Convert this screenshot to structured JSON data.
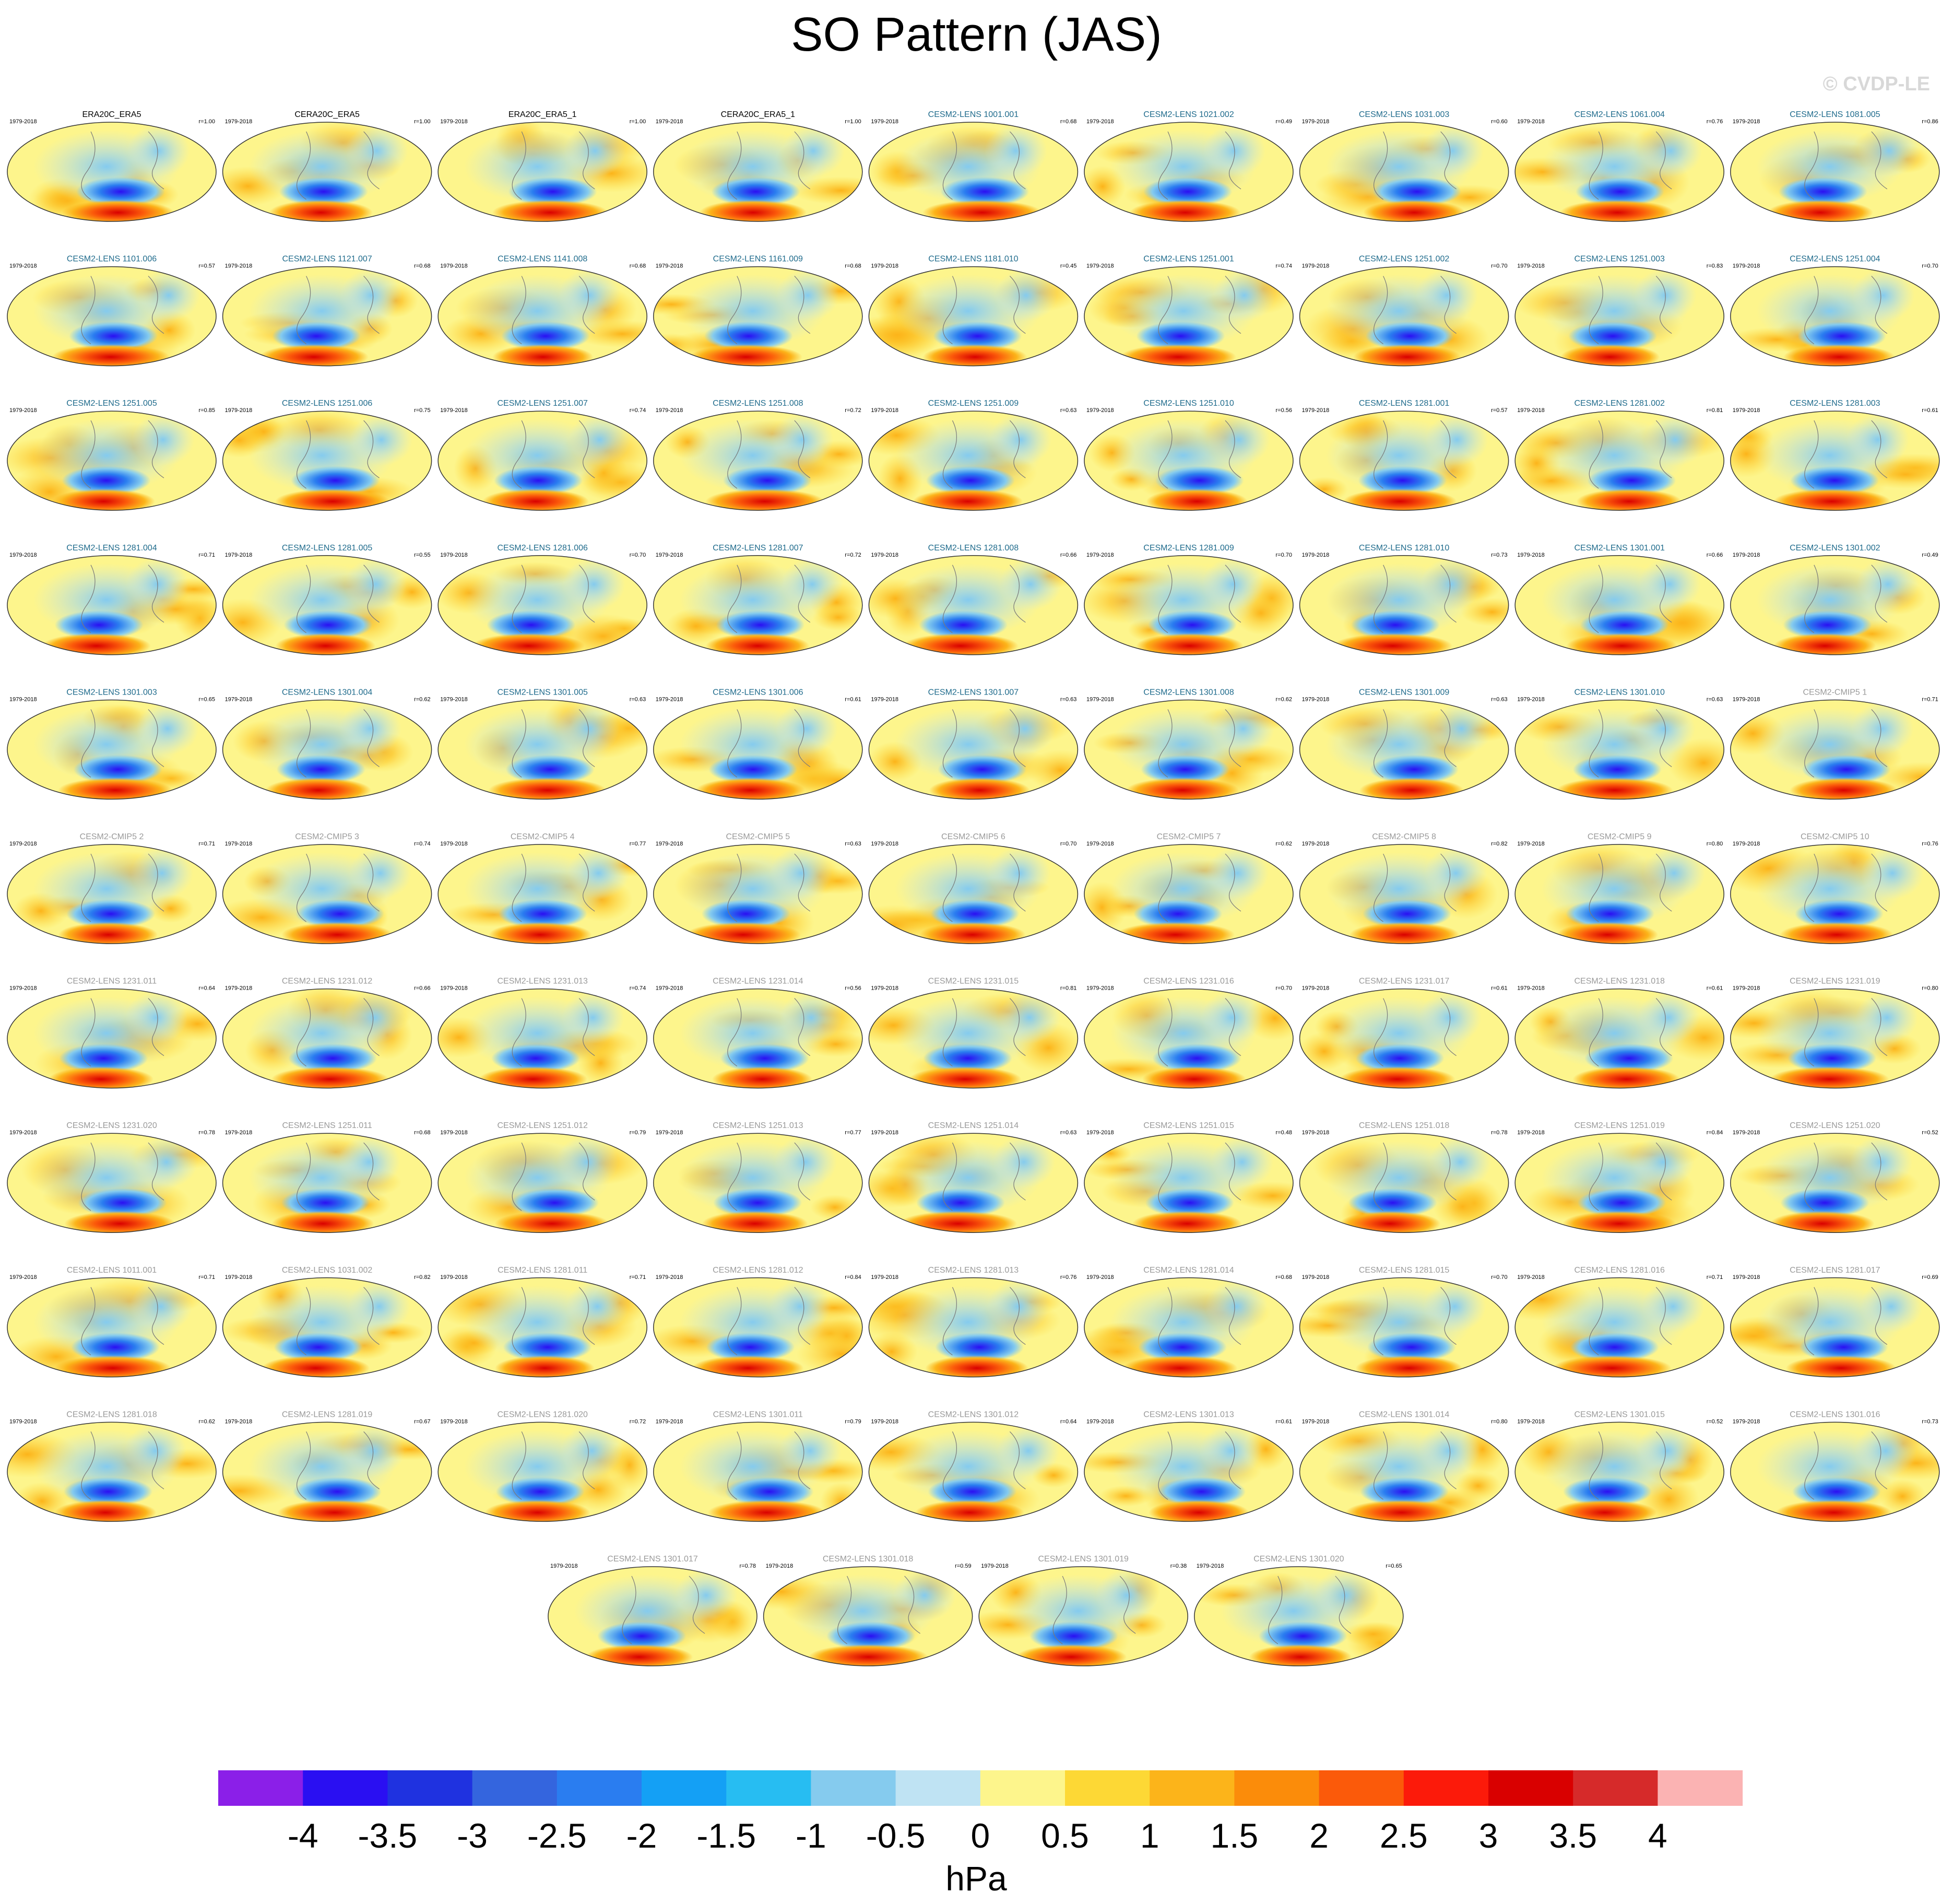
{
  "title": "SO Pattern (JAS)",
  "copyright": "© CVDP-LE",
  "colors": {
    "ocean_land_neutral": "#fdf58c",
    "title_model_label": "#1f6b8c",
    "title_cmip_label": "#9a9a9a",
    "title_obs_label": "#000000"
  },
  "chart_data": {
    "type": "heatmap",
    "panel_period": "1979-2018",
    "panels": [
      {
        "name": "ERA20C_ERA5",
        "r": "r=1.00",
        "period": "1979-2018",
        "kind": "obs"
      },
      {
        "name": "CERA20C_ERA5",
        "r": "r=1.00",
        "period": "1979-2018",
        "kind": "obs"
      },
      {
        "name": "ERA20C_ERA5_1",
        "r": "r=1.00",
        "period": "1979-2018",
        "kind": "obs"
      },
      {
        "name": "CERA20C_ERA5_1",
        "r": "r=1.00",
        "period": "1979-2018",
        "kind": "obs"
      },
      {
        "name": "CESM2-LENS 1001.001",
        "r": "r=0.68",
        "period": "1979-2018",
        "kind": "lens"
      },
      {
        "name": "CESM2-LENS 1021.002",
        "r": "r=0.49",
        "period": "1979-2018",
        "kind": "lens"
      },
      {
        "name": "CESM2-LENS 1031.003",
        "r": "r=0.60",
        "period": "1979-2018",
        "kind": "lens"
      },
      {
        "name": "CESM2-LENS 1061.004",
        "r": "r=0.76",
        "period": "1979-2018",
        "kind": "lens"
      },
      {
        "name": "CESM2-LENS 1081.005",
        "r": "r=0.86",
        "period": "1979-2018",
        "kind": "lens"
      },
      {
        "name": "CESM2-LENS 1101.006",
        "r": "r=0.57",
        "period": "1979-2018",
        "kind": "lens"
      },
      {
        "name": "CESM2-LENS 1121.007",
        "r": "r=0.68",
        "period": "1979-2018",
        "kind": "lens"
      },
      {
        "name": "CESM2-LENS 1141.008",
        "r": "r=0.68",
        "period": "1979-2018",
        "kind": "lens"
      },
      {
        "name": "CESM2-LENS 1161.009",
        "r": "r=0.68",
        "period": "1979-2018",
        "kind": "lens"
      },
      {
        "name": "CESM2-LENS 1181.010",
        "r": "r=0.45",
        "period": "1979-2018",
        "kind": "lens"
      },
      {
        "name": "CESM2-LENS 1251.001",
        "r": "r=0.74",
        "period": "1979-2018",
        "kind": "lens"
      },
      {
        "name": "CESM2-LENS 1251.002",
        "r": "r=0.70",
        "period": "1979-2018",
        "kind": "lens"
      },
      {
        "name": "CESM2-LENS 1251.003",
        "r": "r=0.83",
        "period": "1979-2018",
        "kind": "lens"
      },
      {
        "name": "CESM2-LENS 1251.004",
        "r": "r=0.70",
        "period": "1979-2018",
        "kind": "lens"
      },
      {
        "name": "CESM2-LENS 1251.005",
        "r": "r=0.85",
        "period": "1979-2018",
        "kind": "lens"
      },
      {
        "name": "CESM2-LENS 1251.006",
        "r": "r=0.75",
        "period": "1979-2018",
        "kind": "lens"
      },
      {
        "name": "CESM2-LENS 1251.007",
        "r": "r=0.74",
        "period": "1979-2018",
        "kind": "lens"
      },
      {
        "name": "CESM2-LENS 1251.008",
        "r": "r=0.72",
        "period": "1979-2018",
        "kind": "lens"
      },
      {
        "name": "CESM2-LENS 1251.009",
        "r": "r=0.63",
        "period": "1979-2018",
        "kind": "lens"
      },
      {
        "name": "CESM2-LENS 1251.010",
        "r": "r=0.56",
        "period": "1979-2018",
        "kind": "lens"
      },
      {
        "name": "CESM2-LENS 1281.001",
        "r": "r=0.57",
        "period": "1979-2018",
        "kind": "lens"
      },
      {
        "name": "CESM2-LENS 1281.002",
        "r": "r=0.81",
        "period": "1979-2018",
        "kind": "lens"
      },
      {
        "name": "CESM2-LENS 1281.003",
        "r": "r=0.61",
        "period": "1979-2018",
        "kind": "lens"
      },
      {
        "name": "CESM2-LENS 1281.004",
        "r": "r=0.71",
        "period": "1979-2018",
        "kind": "lens"
      },
      {
        "name": "CESM2-LENS 1281.005",
        "r": "r=0.55",
        "period": "1979-2018",
        "kind": "lens"
      },
      {
        "name": "CESM2-LENS 1281.006",
        "r": "r=0.70",
        "period": "1979-2018",
        "kind": "lens"
      },
      {
        "name": "CESM2-LENS 1281.007",
        "r": "r=0.72",
        "period": "1979-2018",
        "kind": "lens"
      },
      {
        "name": "CESM2-LENS 1281.008",
        "r": "r=0.66",
        "period": "1979-2018",
        "kind": "lens"
      },
      {
        "name": "CESM2-LENS 1281.009",
        "r": "r=0.70",
        "period": "1979-2018",
        "kind": "lens"
      },
      {
        "name": "CESM2-LENS 1281.010",
        "r": "r=0.73",
        "period": "1979-2018",
        "kind": "lens"
      },
      {
        "name": "CESM2-LENS 1301.001",
        "r": "r=0.66",
        "period": "1979-2018",
        "kind": "lens"
      },
      {
        "name": "CESM2-LENS 1301.002",
        "r": "r=0.49",
        "period": "1979-2018",
        "kind": "lens"
      },
      {
        "name": "CESM2-LENS 1301.003",
        "r": "r=0.65",
        "period": "1979-2018",
        "kind": "lens"
      },
      {
        "name": "CESM2-LENS 1301.004",
        "r": "r=0.62",
        "period": "1979-2018",
        "kind": "lens"
      },
      {
        "name": "CESM2-LENS 1301.005",
        "r": "r=0.63",
        "period": "1979-2018",
        "kind": "lens"
      },
      {
        "name": "CESM2-LENS 1301.006",
        "r": "r=0.61",
        "period": "1979-2018",
        "kind": "lens"
      },
      {
        "name": "CESM2-LENS 1301.007",
        "r": "r=0.63",
        "period": "1979-2018",
        "kind": "lens"
      },
      {
        "name": "CESM2-LENS 1301.008",
        "r": "r=0.62",
        "period": "1979-2018",
        "kind": "lens"
      },
      {
        "name": "CESM2-LENS 1301.009",
        "r": "r=0.63",
        "period": "1979-2018",
        "kind": "lens"
      },
      {
        "name": "CESM2-LENS 1301.010",
        "r": "r=0.63",
        "period": "1979-2018",
        "kind": "lens"
      },
      {
        "name": "CESM2-CMIP5 1",
        "r": "r=0.71",
        "period": "1979-2018",
        "kind": "cmip"
      },
      {
        "name": "CESM2-CMIP5 2",
        "r": "r=0.71",
        "period": "1979-2018",
        "kind": "cmip"
      },
      {
        "name": "CESM2-CMIP5 3",
        "r": "r=0.74",
        "period": "1979-2018",
        "kind": "cmip"
      },
      {
        "name": "CESM2-CMIP5 4",
        "r": "r=0.77",
        "period": "1979-2018",
        "kind": "cmip"
      },
      {
        "name": "CESM2-CMIP5 5",
        "r": "r=0.63",
        "period": "1979-2018",
        "kind": "cmip"
      },
      {
        "name": "CESM2-CMIP5 6",
        "r": "r=0.70",
        "period": "1979-2018",
        "kind": "cmip"
      },
      {
        "name": "CESM2-CMIP5 7",
        "r": "r=0.62",
        "period": "1979-2018",
        "kind": "cmip"
      },
      {
        "name": "CESM2-CMIP5 8",
        "r": "r=0.82",
        "period": "1979-2018",
        "kind": "cmip"
      },
      {
        "name": "CESM2-CMIP5 9",
        "r": "r=0.80",
        "period": "1979-2018",
        "kind": "cmip"
      },
      {
        "name": "CESM2-CMIP5 10",
        "r": "r=0.76",
        "period": "1979-2018",
        "kind": "cmip"
      },
      {
        "name": "CESM2-LENS 1231.011",
        "r": "r=0.64",
        "period": "1979-2018",
        "kind": "cmip"
      },
      {
        "name": "CESM2-LENS 1231.012",
        "r": "r=0.66",
        "period": "1979-2018",
        "kind": "cmip"
      },
      {
        "name": "CESM2-LENS 1231.013",
        "r": "r=0.74",
        "period": "1979-2018",
        "kind": "cmip"
      },
      {
        "name": "CESM2-LENS 1231.014",
        "r": "r=0.56",
        "period": "1979-2018",
        "kind": "cmip"
      },
      {
        "name": "CESM2-LENS 1231.015",
        "r": "r=0.81",
        "period": "1979-2018",
        "kind": "cmip"
      },
      {
        "name": "CESM2-LENS 1231.016",
        "r": "r=0.70",
        "period": "1979-2018",
        "kind": "cmip"
      },
      {
        "name": "CESM2-LENS 1231.017",
        "r": "r=0.61",
        "period": "1979-2018",
        "kind": "cmip"
      },
      {
        "name": "CESM2-LENS 1231.018",
        "r": "r=0.61",
        "period": "1979-2018",
        "kind": "cmip"
      },
      {
        "name": "CESM2-LENS 1231.019",
        "r": "r=0.80",
        "period": "1979-2018",
        "kind": "cmip"
      },
      {
        "name": "CESM2-LENS 1231.020",
        "r": "r=0.78",
        "period": "1979-2018",
        "kind": "cmip"
      },
      {
        "name": "CESM2-LENS 1251.011",
        "r": "r=0.68",
        "period": "1979-2018",
        "kind": "cmip"
      },
      {
        "name": "CESM2-LENS 1251.012",
        "r": "r=0.79",
        "period": "1979-2018",
        "kind": "cmip"
      },
      {
        "name": "CESM2-LENS 1251.013",
        "r": "r=0.77",
        "period": "1979-2018",
        "kind": "cmip"
      },
      {
        "name": "CESM2-LENS 1251.014",
        "r": "r=0.63",
        "period": "1979-2018",
        "kind": "cmip"
      },
      {
        "name": "CESM2-LENS 1251.015",
        "r": "r=0.48",
        "period": "1979-2018",
        "kind": "cmip"
      },
      {
        "name": "CESM2-LENS 1251.018",
        "r": "r=0.78",
        "period": "1979-2018",
        "kind": "cmip"
      },
      {
        "name": "CESM2-LENS 1251.019",
        "r": "r=0.84",
        "period": "1979-2018",
        "kind": "cmip"
      },
      {
        "name": "CESM2-LENS 1251.020",
        "r": "r=0.52",
        "period": "1979-2018",
        "kind": "cmip"
      },
      {
        "name": "CESM2-LENS 1011.001",
        "r": "r=0.71",
        "period": "1979-2018",
        "kind": "cmip"
      },
      {
        "name": "CESM2-LENS 1031.002",
        "r": "r=0.82",
        "period": "1979-2018",
        "kind": "cmip"
      },
      {
        "name": "CESM2-LENS 1281.011",
        "r": "r=0.71",
        "period": "1979-2018",
        "kind": "cmip"
      },
      {
        "name": "CESM2-LENS 1281.012",
        "r": "r=0.84",
        "period": "1979-2018",
        "kind": "cmip"
      },
      {
        "name": "CESM2-LENS 1281.013",
        "r": "r=0.76",
        "period": "1979-2018",
        "kind": "cmip"
      },
      {
        "name": "CESM2-LENS 1281.014",
        "r": "r=0.68",
        "period": "1979-2018",
        "kind": "cmip"
      },
      {
        "name": "CESM2-LENS 1281.015",
        "r": "r=0.70",
        "period": "1979-2018",
        "kind": "cmip"
      },
      {
        "name": "CESM2-LENS 1281.016",
        "r": "r=0.71",
        "period": "1979-2018",
        "kind": "cmip"
      },
      {
        "name": "CESM2-LENS 1281.017",
        "r": "r=0.69",
        "period": "1979-2018",
        "kind": "cmip"
      },
      {
        "name": "CESM2-LENS 1281.018",
        "r": "r=0.62",
        "period": "1979-2018",
        "kind": "cmip"
      },
      {
        "name": "CESM2-LENS 1281.019",
        "r": "r=0.67",
        "period": "1979-2018",
        "kind": "cmip"
      },
      {
        "name": "CESM2-LENS 1281.020",
        "r": "r=0.72",
        "period": "1979-2018",
        "kind": "cmip"
      },
      {
        "name": "CESM2-LENS 1301.011",
        "r": "r=0.79",
        "period": "1979-2018",
        "kind": "cmip"
      },
      {
        "name": "CESM2-LENS 1301.012",
        "r": "r=0.64",
        "period": "1979-2018",
        "kind": "cmip"
      },
      {
        "name": "CESM2-LENS 1301.013",
        "r": "r=0.61",
        "period": "1979-2018",
        "kind": "cmip"
      },
      {
        "name": "CESM2-LENS 1301.014",
        "r": "r=0.80",
        "period": "1979-2018",
        "kind": "cmip"
      },
      {
        "name": "CESM2-LENS 1301.015",
        "r": "r=0.52",
        "period": "1979-2018",
        "kind": "cmip"
      },
      {
        "name": "CESM2-LENS 1301.016",
        "r": "r=0.73",
        "period": "1979-2018",
        "kind": "cmip"
      },
      {
        "name": "CESM2-LENS 1301.017",
        "r": "r=0.78",
        "period": "1979-2018",
        "kind": "cmip"
      },
      {
        "name": "CESM2-LENS 1301.018",
        "r": "r=0.59",
        "period": "1979-2018",
        "kind": "cmip"
      },
      {
        "name": "CESM2-LENS 1301.019",
        "r": "r=0.38",
        "period": "1979-2018",
        "kind": "cmip"
      },
      {
        "name": "CESM2-LENS 1301.020",
        "r": "r=0.65",
        "period": "1979-2018",
        "kind": "cmip"
      }
    ],
    "colorbar": {
      "unit_label": "hPa",
      "tick_labels": [
        "-4",
        "-3.5",
        "-3",
        "-2.5",
        "-2",
        "-1.5",
        "-1",
        "-0.5",
        "0",
        "0.5",
        "1",
        "1.5",
        "2",
        "2.5",
        "3",
        "3.5",
        "4"
      ],
      "colors": [
        "#8b1fe8",
        "#2a0ff2",
        "#1f32e0",
        "#3465de",
        "#2a7df0",
        "#14a0f5",
        "#27bdf2",
        "#85cbee",
        "#bfe3f3",
        "#fdf58c",
        "#fdd835",
        "#fcb41a",
        "#fb8c0a",
        "#fb5a0a",
        "#fc1a0a",
        "#d90000",
        "#d62a2a",
        "#fbb3b3"
      ]
    }
  }
}
